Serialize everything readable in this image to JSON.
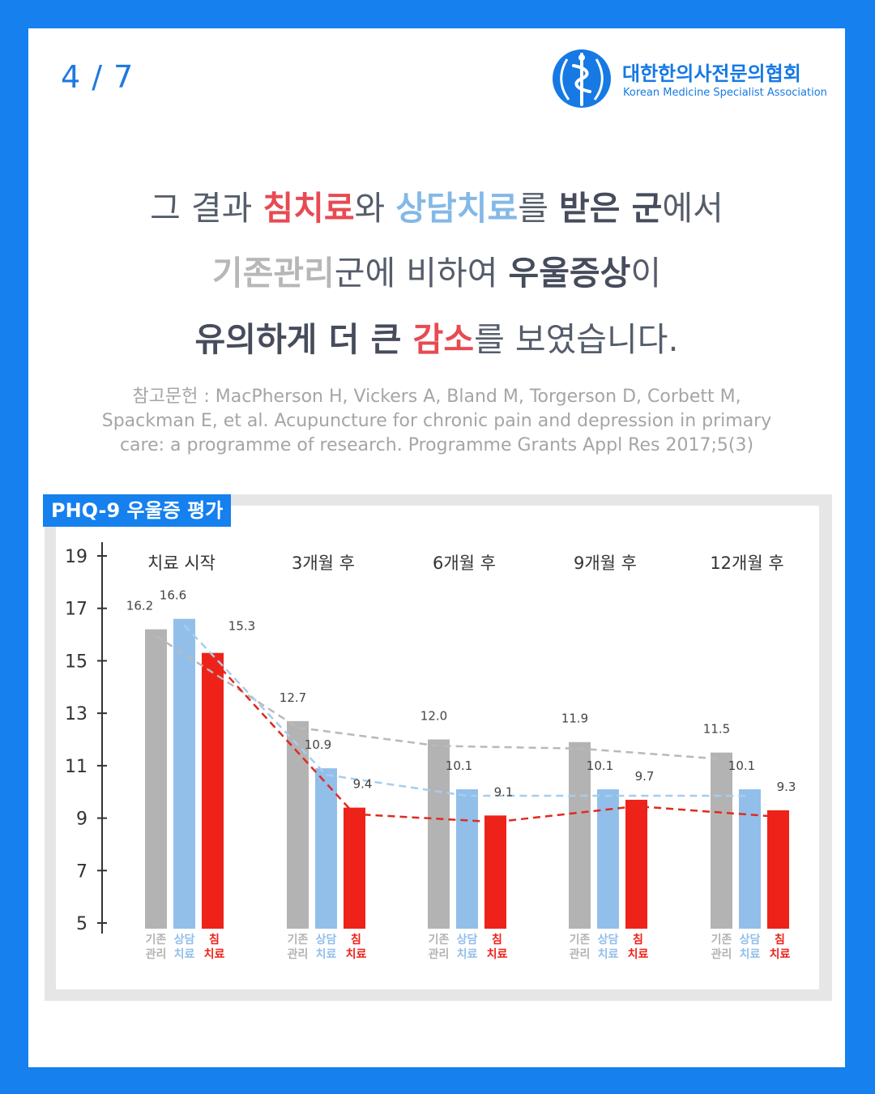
{
  "page_indicator": "4 / 7",
  "logo": {
    "name_ko": "대한한의사전문의협회",
    "name_en": "Korean Medicine Specialist Association"
  },
  "headline": {
    "line1": [
      {
        "text": "그 결과 ",
        "style": "normal"
      },
      {
        "text": "침치료",
        "style": "red"
      },
      {
        "text": "와 ",
        "style": "normal"
      },
      {
        "text": "상담치료",
        "style": "sky"
      },
      {
        "text": "를 ",
        "style": "normal"
      },
      {
        "text": "받은 군",
        "style": "dark"
      },
      {
        "text": "에서",
        "style": "normal"
      }
    ],
    "line2": [
      {
        "text": "기존관리",
        "style": "gray"
      },
      {
        "text": "군에 비하여 ",
        "style": "normal"
      },
      {
        "text": "우울증상",
        "style": "dark"
      },
      {
        "text": "이",
        "style": "normal"
      }
    ],
    "line3": [
      {
        "text": "유의하게 더 큰 ",
        "style": "dark"
      },
      {
        "text": "감소",
        "style": "red"
      },
      {
        "text": "를 보였습니다.",
        "style": "normal"
      }
    ]
  },
  "reference": {
    "line1": "참고문헌 : MacPherson H, Vickers A, Bland M, Torgerson D, Corbett M,",
    "line2": "Spackman E, et al. Acupuncture for chronic pain and depression in primary",
    "line3": "care: a programme of research. Programme Grants Appl Res 2017;5(3)"
  },
  "chart_label": "PHQ-9 우울증 평가",
  "colors": {
    "usual": "#b3b3b3",
    "counsel": "#92bfea",
    "acup": "#ee2219",
    "brand": "#1580ee",
    "line_usual": "#b9b9b9",
    "line_counsel": "#a6cdef",
    "line_acup": "#e02a20"
  },
  "chart_data": {
    "type": "bar",
    "categories": [
      "치료 시작",
      "3개월 후",
      "6개월 후",
      "9개월 후",
      "12개월 후"
    ],
    "series": [
      {
        "name": "기존관리",
        "values": [
          16.2,
          12.7,
          12.0,
          11.9,
          11.5
        ]
      },
      {
        "name": "상담치료",
        "values": [
          16.6,
          10.9,
          10.1,
          10.1,
          10.1
        ]
      },
      {
        "name": "침치료",
        "values": [
          15.3,
          9.4,
          9.1,
          9.7,
          9.3
        ]
      }
    ],
    "series_labels": [
      {
        "top": "기존",
        "bottom": "관리"
      },
      {
        "top": "상담",
        "bottom": "치료"
      },
      {
        "top": "침",
        "bottom": "치료"
      }
    ],
    "yticks": [
      5,
      7,
      9,
      11,
      13,
      15,
      17,
      19
    ],
    "ylim": [
      5,
      19
    ],
    "trend_lines": true,
    "title": "PHQ-9 우울증 평가"
  }
}
